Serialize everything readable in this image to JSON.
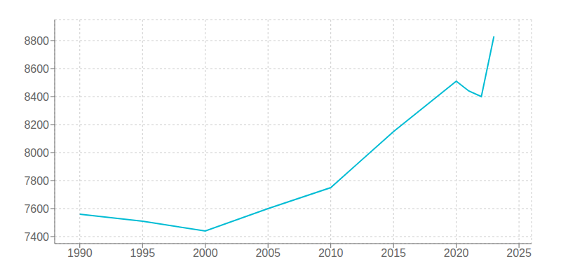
{
  "chart_data": {
    "type": "line",
    "x": [
      1990,
      1995,
      2000,
      2005,
      2010,
      2015,
      2020,
      2021,
      2022,
      2023
    ],
    "values": [
      7560,
      7510,
      7440,
      7600,
      7750,
      8150,
      8510,
      8440,
      8400,
      8830
    ],
    "color": "#00BCD4",
    "xlim": [
      1988,
      2026
    ],
    "ylim": [
      7350,
      8950
    ],
    "xticks": [
      1990,
      1995,
      2000,
      2005,
      2010,
      2015,
      2020,
      2025
    ],
    "yticks": [
      7400,
      7600,
      7800,
      8000,
      8200,
      8400,
      8600,
      8800
    ],
    "grid": true
  }
}
